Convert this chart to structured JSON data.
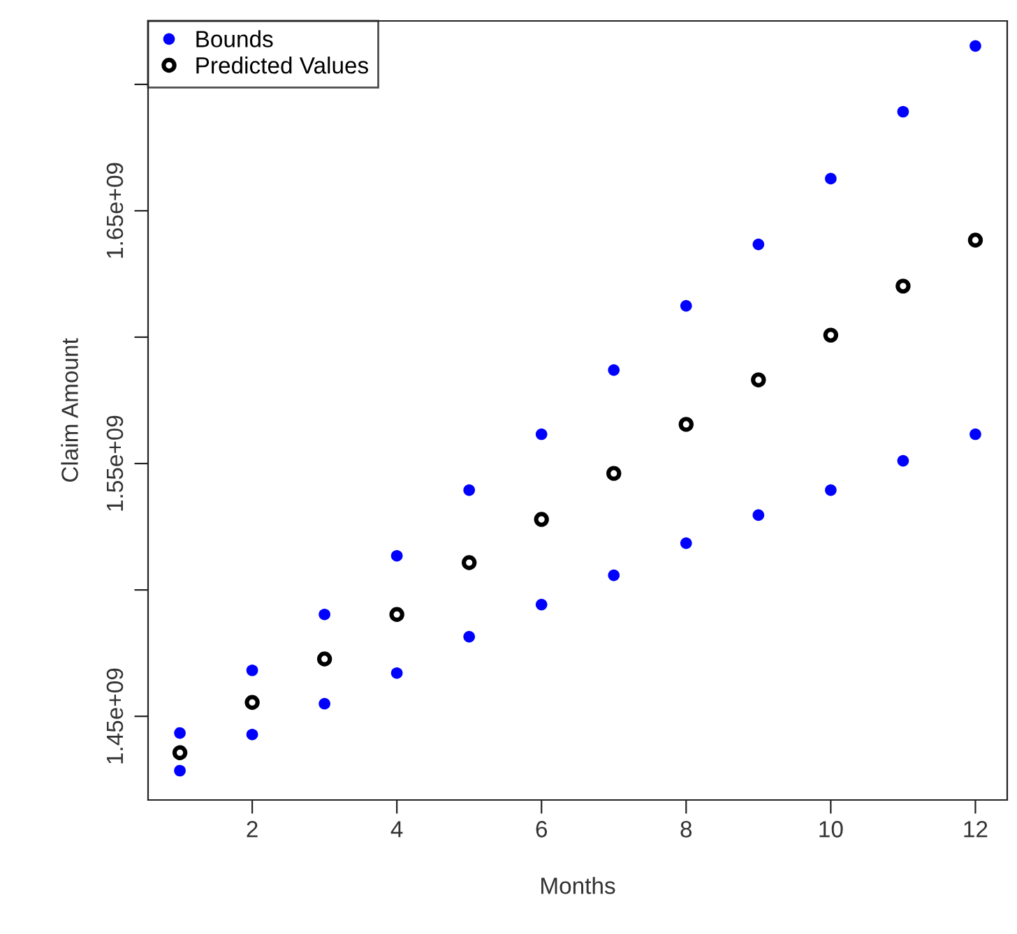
{
  "chart_data": {
    "type": "scatter",
    "xlabel": "Months",
    "ylabel": "Claim Amount",
    "xlim": [
      0.56,
      12.44
    ],
    "ylim": [
      1416900000,
      1725100000
    ],
    "xticks": [
      2,
      4,
      6,
      8,
      10,
      12
    ],
    "yticks": [
      {
        "value": 1450000000,
        "label": "1.45e+09"
      },
      {
        "value": 1500000000,
        "label": null
      },
      {
        "value": 1550000000,
        "label": "1.55e+09"
      },
      {
        "value": 1600000000,
        "label": null
      },
      {
        "value": 1650000000,
        "label": "1.65e+09"
      },
      {
        "value": 1700000000,
        "label": null
      }
    ],
    "grid": false,
    "legend": "top left",
    "series": [
      {
        "name": "Bounds",
        "color": "#0000ff",
        "marker": "circle",
        "x": [
          1,
          2,
          3,
          4,
          5,
          6,
          7,
          8,
          9,
          10,
          11,
          12,
          1,
          2,
          3,
          4,
          5,
          6,
          7,
          8,
          9,
          10,
          11,
          12
        ],
        "values": [
          1443400000,
          1468200000,
          1490300000,
          1513500000,
          1539500000,
          1561600000,
          1587000000,
          1612400000,
          1636700000,
          1662700000,
          1689200000,
          1715200000,
          1428500000,
          1442800000,
          1455000000,
          1467100000,
          1481500000,
          1494200000,
          1505800000,
          1518500000,
          1529600000,
          1539500000,
          1551100000,
          1561600000
        ]
      },
      {
        "name": "Predicted Values",
        "color": "#000000",
        "marker": "circle",
        "x": [
          1,
          2,
          3,
          4,
          5,
          6,
          7,
          8,
          9,
          10,
          11,
          12
        ],
        "values": [
          1435600000,
          1455500000,
          1472700000,
          1490300000,
          1510800000,
          1527900000,
          1546100000,
          1565500000,
          1583100000,
          1600800000,
          1620200000,
          1638400000
        ]
      }
    ]
  }
}
